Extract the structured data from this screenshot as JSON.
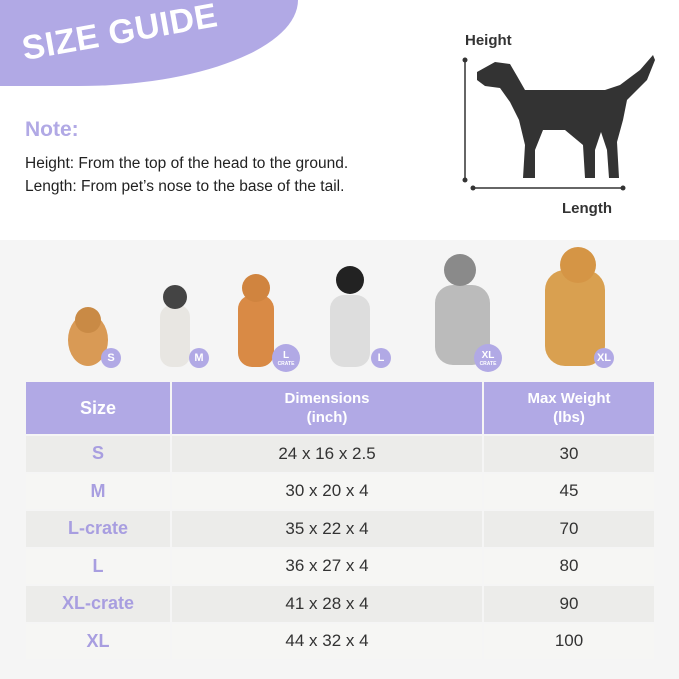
{
  "header": {
    "title": "SIZE GUIDE",
    "note_label": "Note:",
    "lines": [
      "Height: From the top of the head to the ground.",
      "Length: From pet’s nose to the base of the tail."
    ],
    "height_label": "Height",
    "length_label": "Length"
  },
  "colors": {
    "accent": "#b1a9e5",
    "size_text": "#a89ee0"
  },
  "dogs": [
    {
      "badge": "S"
    },
    {
      "badge": "M"
    },
    {
      "badge": "L",
      "sub": "CRATE"
    },
    {
      "badge": "L"
    },
    {
      "badge": "XL",
      "sub": "CRATE"
    },
    {
      "badge": "XL"
    }
  ],
  "table": {
    "headers": [
      "Size",
      "Dimensions",
      "(inch)",
      "Max Weight",
      "(lbs)"
    ],
    "rows": [
      [
        "S",
        "24 x 16 x 2.5",
        "30"
      ],
      [
        "M",
        "30 x 20 x 4",
        "45"
      ],
      [
        "L-crate",
        "35 x 22 x 4",
        "70"
      ],
      [
        "L",
        "36 x 27 x 4",
        "80"
      ],
      [
        "XL-crate",
        "41 x 28 x 4",
        "90"
      ],
      [
        "XL",
        "44 x 32 x 4",
        "100"
      ]
    ]
  }
}
